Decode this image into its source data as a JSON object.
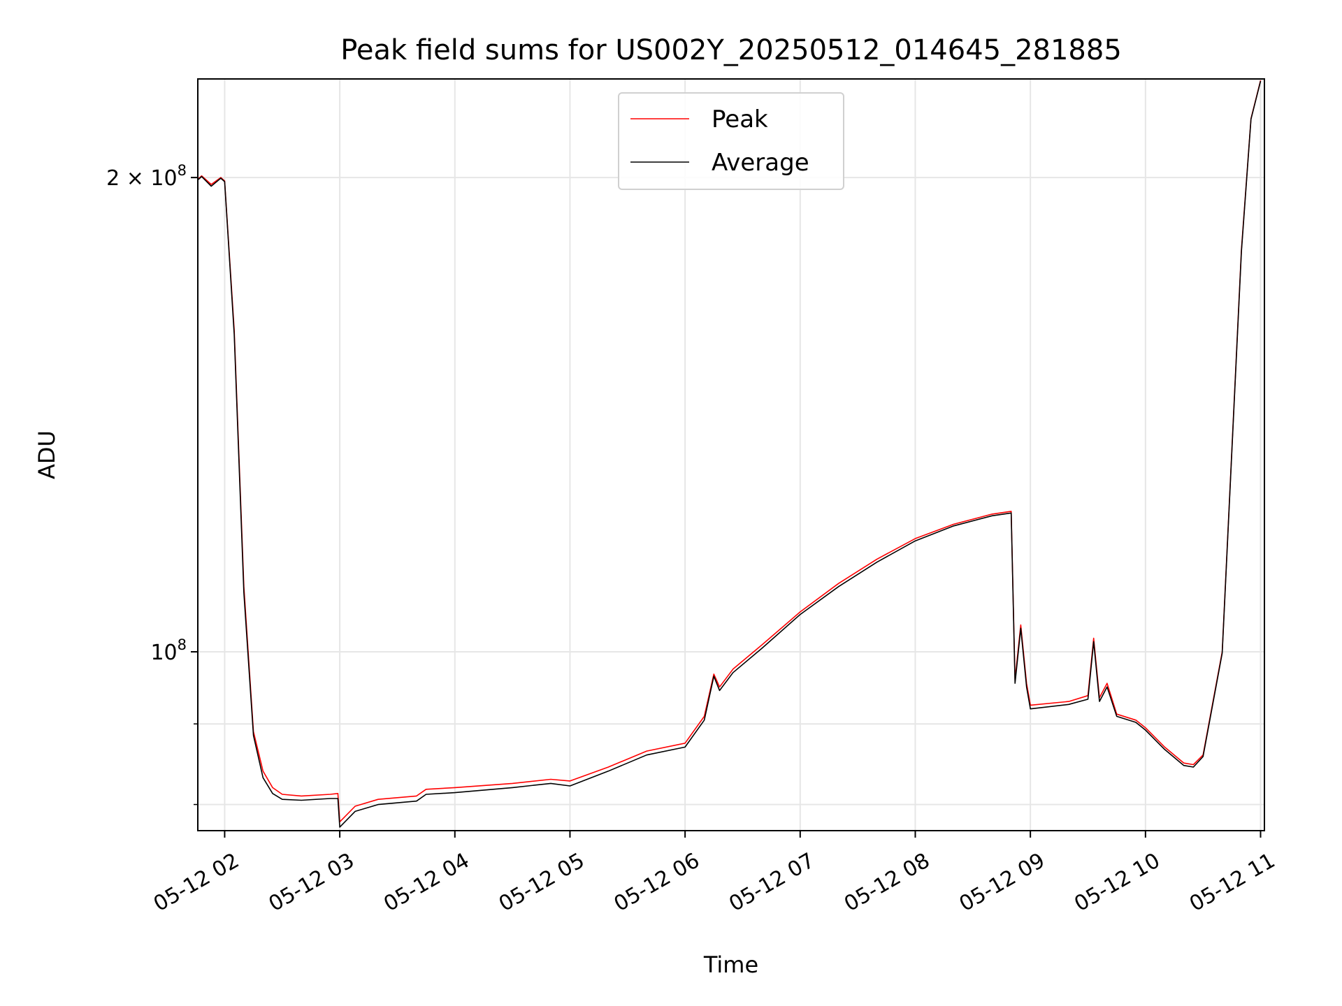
{
  "chart_data": {
    "type": "line",
    "title": "Peak field sums for US002Y_20250512_014645_281885",
    "xlabel": "Time",
    "ylabel": "ADU",
    "yscale": "log",
    "grid": true,
    "legend_position": "upper-center",
    "x_tick_labels": [
      "05-12 02",
      "05-12 03",
      "05-12 04",
      "05-12 05",
      "05-12 06",
      "05-12 07",
      "05-12 08",
      "05-12 09",
      "05-12 10",
      "05-12 11"
    ],
    "x_ticks": [
      "2025-05-12 02:00",
      "2025-05-12 03:00",
      "2025-05-12 04:00",
      "2025-05-12 05:00",
      "2025-05-12 06:00",
      "2025-05-12 07:00",
      "2025-05-12 08:00",
      "2025-05-12 09:00",
      "2025-05-12 10:00",
      "2025-05-12 11:00"
    ],
    "xlim": [
      "2025-05-12 01:46",
      "2025-05-12 11:02"
    ],
    "y_tick_labels": [
      {
        "value": 100000000,
        "base": "10",
        "exp": "8"
      },
      {
        "value": 200000000,
        "base": "2 × 10",
        "exp": "8"
      }
    ],
    "ylim": [
      77000000,
      231000000
    ],
    "series": [
      {
        "name": "Peak",
        "color": "#ff0000",
        "points": [
          [
            "2025-05-12 01:46",
            199500000
          ],
          [
            "2025-05-12 01:48",
            200500000
          ],
          [
            "2025-05-12 01:53",
            198000000
          ],
          [
            "2025-05-12 01:58",
            200000000
          ],
          [
            "2025-05-12 02:00",
            199000000
          ],
          [
            "2025-05-12 02:05",
            160000000
          ],
          [
            "2025-05-12 02:10",
            110000000
          ],
          [
            "2025-05-12 02:15",
            89000000
          ],
          [
            "2025-05-12 02:20",
            84000000
          ],
          [
            "2025-05-12 02:25",
            82000000
          ],
          [
            "2025-05-12 02:30",
            81200000
          ],
          [
            "2025-05-12 02:40",
            81000000
          ],
          [
            "2025-05-12 02:55",
            81200000
          ],
          [
            "2025-05-12 02:59",
            81300000
          ],
          [
            "2025-05-12 03:00",
            78000000
          ],
          [
            "2025-05-12 03:08",
            79800000
          ],
          [
            "2025-05-12 03:20",
            80600000
          ],
          [
            "2025-05-12 03:40",
            81000000
          ],
          [
            "2025-05-12 03:45",
            81800000
          ],
          [
            "2025-05-12 04:00",
            82000000
          ],
          [
            "2025-05-12 04:30",
            82500000
          ],
          [
            "2025-05-12 04:50",
            83000000
          ],
          [
            "2025-05-12 05:00",
            82800000
          ],
          [
            "2025-05-12 05:20",
            84500000
          ],
          [
            "2025-05-12 05:40",
            86500000
          ],
          [
            "2025-05-12 06:00",
            87500000
          ],
          [
            "2025-05-12 06:10",
            91000000
          ],
          [
            "2025-05-12 06:15",
            96800000
          ],
          [
            "2025-05-12 06:18",
            95000000
          ],
          [
            "2025-05-12 06:25",
            97500000
          ],
          [
            "2025-05-12 06:40",
            101000000
          ],
          [
            "2025-05-12 07:00",
            106000000
          ],
          [
            "2025-05-12 07:20",
            110500000
          ],
          [
            "2025-05-12 07:40",
            114500000
          ],
          [
            "2025-05-12 08:00",
            118000000
          ],
          [
            "2025-05-12 08:20",
            120500000
          ],
          [
            "2025-05-12 08:40",
            122300000
          ],
          [
            "2025-05-12 08:50",
            122800000
          ],
          [
            "2025-05-12 08:52",
            96000000
          ],
          [
            "2025-05-12 08:55",
            104000000
          ],
          [
            "2025-05-12 08:58",
            95500000
          ],
          [
            "2025-05-12 09:00",
            92500000
          ],
          [
            "2025-05-12 09:20",
            93000000
          ],
          [
            "2025-05-12 09:30",
            93800000
          ],
          [
            "2025-05-12 09:33",
            102000000
          ],
          [
            "2025-05-12 09:36",
            93500000
          ],
          [
            "2025-05-12 09:40",
            95500000
          ],
          [
            "2025-05-12 09:45",
            91300000
          ],
          [
            "2025-05-12 09:55",
            90500000
          ],
          [
            "2025-05-12 10:00",
            89500000
          ],
          [
            "2025-05-12 10:10",
            87000000
          ],
          [
            "2025-05-12 10:20",
            85000000
          ],
          [
            "2025-05-12 10:25",
            84800000
          ],
          [
            "2025-05-12 10:30",
            86000000
          ],
          [
            "2025-05-12 10:40",
            100000000
          ],
          [
            "2025-05-12 10:50",
            180000000
          ],
          [
            "2025-05-12 10:55",
            218000000
          ],
          [
            "2025-05-12 11:00",
            230500000
          ]
        ]
      },
      {
        "name": "Average",
        "color": "#000000",
        "points": [
          [
            "2025-05-12 01:46",
            199300000
          ],
          [
            "2025-05-12 01:48",
            200300000
          ],
          [
            "2025-05-12 01:53",
            197500000
          ],
          [
            "2025-05-12 01:58",
            199800000
          ],
          [
            "2025-05-12 02:00",
            198800000
          ],
          [
            "2025-05-12 02:05",
            159000000
          ],
          [
            "2025-05-12 02:10",
            109000000
          ],
          [
            "2025-05-12 02:15",
            88500000
          ],
          [
            "2025-05-12 02:20",
            83200000
          ],
          [
            "2025-05-12 02:25",
            81300000
          ],
          [
            "2025-05-12 02:30",
            80600000
          ],
          [
            "2025-05-12 02:40",
            80500000
          ],
          [
            "2025-05-12 02:55",
            80700000
          ],
          [
            "2025-05-12 02:59",
            80700000
          ],
          [
            "2025-05-12 03:00",
            77400000
          ],
          [
            "2025-05-12 03:08",
            79200000
          ],
          [
            "2025-05-12 03:20",
            80000000
          ],
          [
            "2025-05-12 03:40",
            80400000
          ],
          [
            "2025-05-12 03:45",
            81200000
          ],
          [
            "2025-05-12 04:00",
            81400000
          ],
          [
            "2025-05-12 04:30",
            82000000
          ],
          [
            "2025-05-12 04:50",
            82500000
          ],
          [
            "2025-05-12 05:00",
            82200000
          ],
          [
            "2025-05-12 05:20",
            84000000
          ],
          [
            "2025-05-12 05:40",
            86000000
          ],
          [
            "2025-05-12 06:00",
            87000000
          ],
          [
            "2025-05-12 06:10",
            90500000
          ],
          [
            "2025-05-12 06:15",
            96500000
          ],
          [
            "2025-05-12 06:18",
            94500000
          ],
          [
            "2025-05-12 06:25",
            97000000
          ],
          [
            "2025-05-12 06:40",
            100500000
          ],
          [
            "2025-05-12 07:00",
            105600000
          ],
          [
            "2025-05-12 07:20",
            110000000
          ],
          [
            "2025-05-12 07:40",
            114000000
          ],
          [
            "2025-05-12 08:00",
            117600000
          ],
          [
            "2025-05-12 08:20",
            120200000
          ],
          [
            "2025-05-12 08:40",
            122000000
          ],
          [
            "2025-05-12 08:50",
            122500000
          ],
          [
            "2025-05-12 08:52",
            95500000
          ],
          [
            "2025-05-12 08:55",
            103500000
          ],
          [
            "2025-05-12 08:58",
            95000000
          ],
          [
            "2025-05-12 09:00",
            92000000
          ],
          [
            "2025-05-12 09:20",
            92600000
          ],
          [
            "2025-05-12 09:30",
            93300000
          ],
          [
            "2025-05-12 09:33",
            101500000
          ],
          [
            "2025-05-12 09:36",
            93000000
          ],
          [
            "2025-05-12 09:40",
            95000000
          ],
          [
            "2025-05-12 09:45",
            91000000
          ],
          [
            "2025-05-12 09:55",
            90200000
          ],
          [
            "2025-05-12 10:00",
            89200000
          ],
          [
            "2025-05-12 10:10",
            86700000
          ],
          [
            "2025-05-12 10:20",
            84700000
          ],
          [
            "2025-05-12 10:25",
            84500000
          ],
          [
            "2025-05-12 10:30",
            85800000
          ],
          [
            "2025-05-12 10:40",
            99800000
          ],
          [
            "2025-05-12 10:50",
            179500000
          ],
          [
            "2025-05-12 10:55",
            217800000
          ],
          [
            "2025-05-12 11:00",
            230300000
          ]
        ]
      }
    ]
  }
}
